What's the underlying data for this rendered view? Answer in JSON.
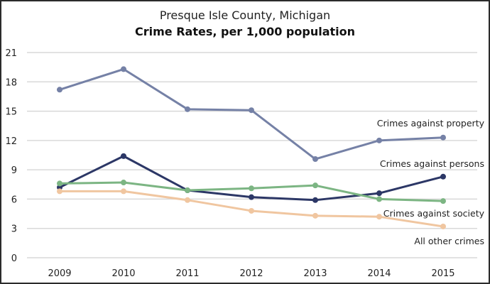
{
  "chart_data": {
    "type": "line",
    "title": "Presque Isle County, Michigan",
    "subtitle": "Crime Rates, per 1,000 population",
    "xlabel": "",
    "ylabel": "",
    "x": [
      "2009",
      "2010",
      "2011",
      "2012",
      "2013",
      "2014",
      "2015"
    ],
    "ylim": [
      0,
      21
    ],
    "yticks": [
      0,
      3,
      6,
      9,
      12,
      15,
      18,
      21
    ],
    "grid": true,
    "legend": "inline-right",
    "series": [
      {
        "name": "Crimes against property",
        "color": "#7581a6",
        "values": [
          17.2,
          19.3,
          15.2,
          15.1,
          10.1,
          12.0,
          12.3
        ]
      },
      {
        "name": "Crimes against persons",
        "color": "#2c3766",
        "values": [
          7.2,
          10.4,
          6.9,
          6.2,
          5.9,
          6.6,
          8.3
        ]
      },
      {
        "name": "Crimes against society",
        "color": "#7cb583",
        "values": [
          7.6,
          7.7,
          6.9,
          7.1,
          7.4,
          6.0,
          5.8
        ]
      },
      {
        "name": "All other crimes",
        "color": "#f0c6a0",
        "values": [
          6.8,
          6.8,
          5.9,
          4.8,
          4.3,
          4.2,
          3.2
        ]
      }
    ]
  }
}
